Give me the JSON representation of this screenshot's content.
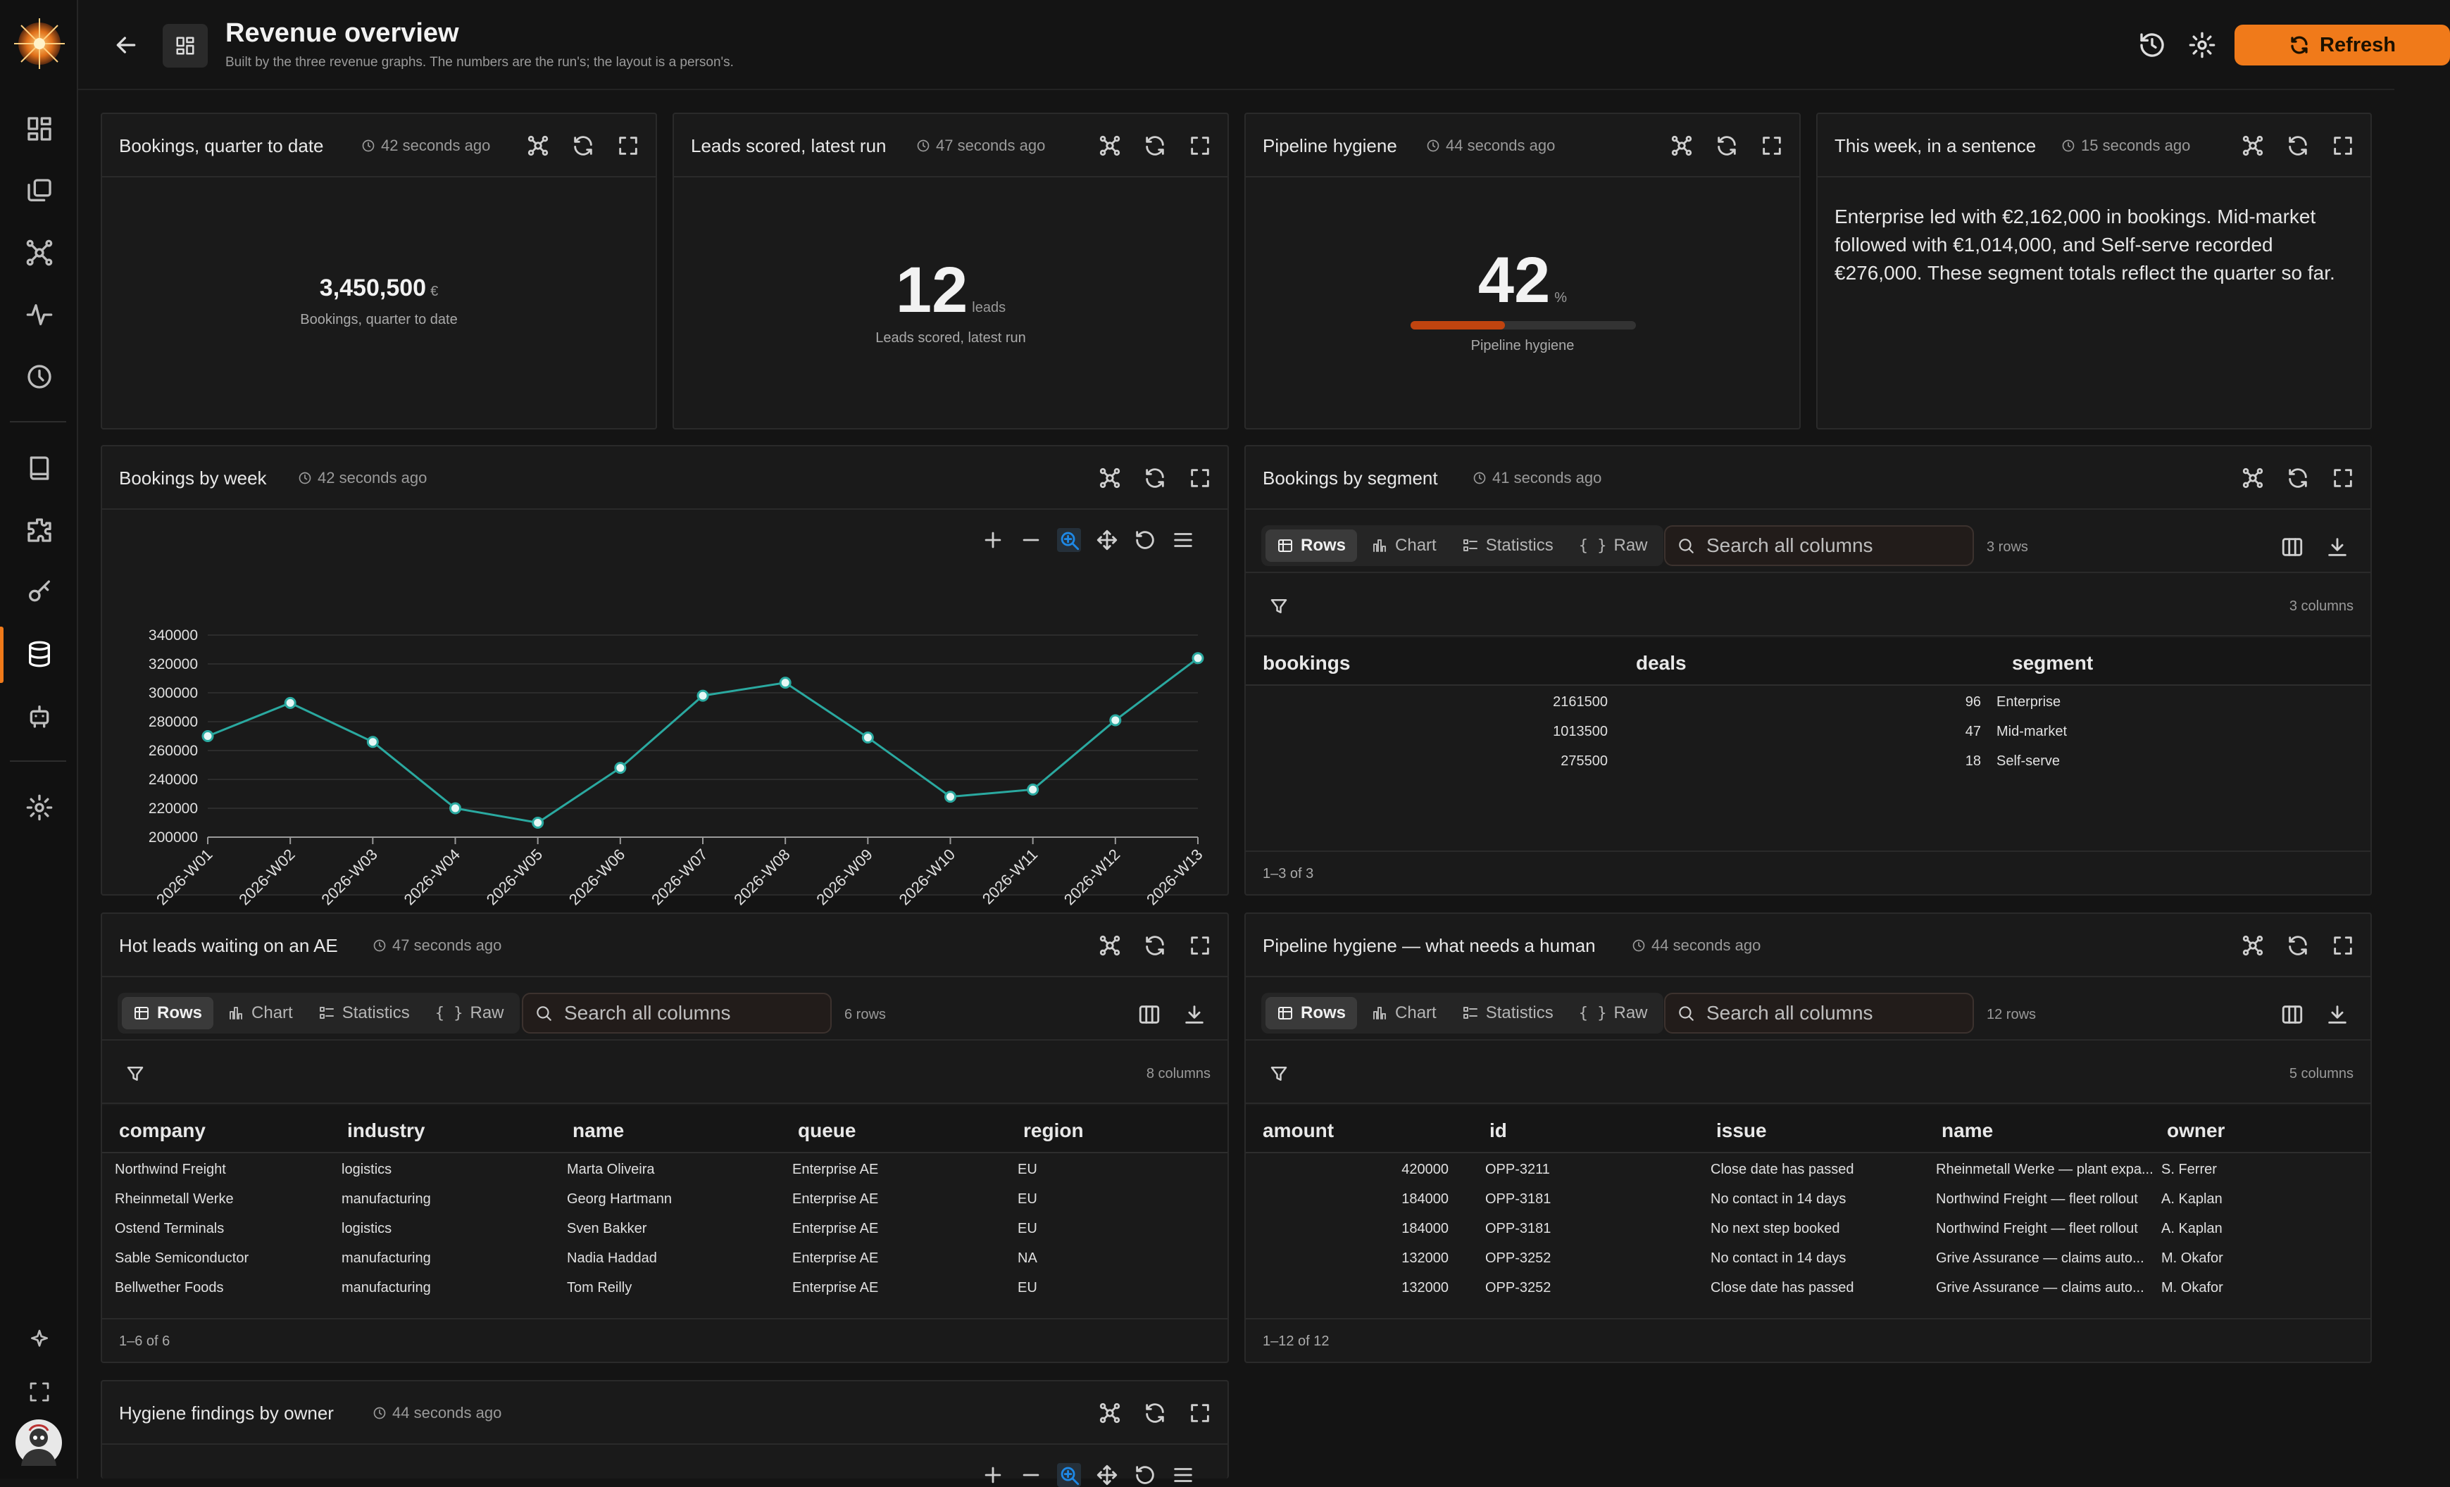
{
  "header": {
    "title": "Revenue overview",
    "subtitle": "Built by the three revenue graphs. The numbers are the run's; the layout is a person's.",
    "refresh_label": "Refresh",
    "accent": "#f07a1a"
  },
  "rail": {
    "items": [
      "dashboard-icon",
      "pages-icon",
      "graph-icon",
      "activity-icon",
      "history-icon",
      "book-icon",
      "puzzle-icon",
      "key-icon",
      "database-icon",
      "robot-icon",
      "settings-icon"
    ],
    "bottom": [
      "sparkle-icon",
      "expand-icon",
      "avatar"
    ]
  },
  "cards": {
    "bookings_qtd": {
      "title": "Bookings, quarter to date",
      "age": "42 seconds ago",
      "value": "3,450,500",
      "unit": "€",
      "label": "Bookings, quarter to date"
    },
    "leads_scored": {
      "title": "Leads scored, latest run",
      "age": "47 seconds ago",
      "value": "12",
      "unit": "leads",
      "label": "Leads scored, latest run"
    },
    "pipeline_hygiene": {
      "title": "Pipeline hygiene",
      "age": "44 seconds ago",
      "value": "42",
      "unit": "%",
      "label": "Pipeline hygiene",
      "progress": 0.42,
      "bar_color": "#c0440f"
    },
    "this_week": {
      "title": "This week, in a sentence",
      "age": "15 seconds ago",
      "text": "Enterprise led with €2,162,000 in bookings. Mid-market followed with €1,014,000, and Self-serve recorded €276,000. These segment totals reflect the quarter so far."
    },
    "bookings_by_week": {
      "title": "Bookings by week",
      "age": "42 seconds ago"
    },
    "bookings_by_segment": {
      "title": "Bookings by segment",
      "age": "41 seconds ago",
      "tabs": [
        "Rows",
        "Chart",
        "Statistics",
        "Raw"
      ],
      "search_placeholder": "Search all columns",
      "rows_label": "3 rows",
      "cols_label": "3 columns",
      "columns": [
        "bookings",
        "deals",
        "segment"
      ],
      "rows": [
        [
          "2161500",
          "96",
          "Enterprise"
        ],
        [
          "1013500",
          "47",
          "Mid-market"
        ],
        [
          "275500",
          "18",
          "Self-serve"
        ]
      ],
      "footer": "1–3 of 3"
    },
    "hot_leads": {
      "title": "Hot leads waiting on an AE",
      "age": "47 seconds ago",
      "tabs": [
        "Rows",
        "Chart",
        "Statistics",
        "Raw"
      ],
      "search_placeholder": "Search all columns",
      "rows_label": "6 rows",
      "cols_label": "8 columns",
      "columns": [
        "company",
        "industry",
        "name",
        "queue",
        "region"
      ],
      "rows": [
        [
          "Northwind Freight",
          "logistics",
          "Marta Oliveira",
          "Enterprise AE",
          "EU"
        ],
        [
          "Rheinmetall Werke",
          "manufacturing",
          "Georg Hartmann",
          "Enterprise AE",
          "EU"
        ],
        [
          "Ostend Terminals",
          "logistics",
          "Sven Bakker",
          "Enterprise AE",
          "EU"
        ],
        [
          "Sable Semiconductor",
          "manufacturing",
          "Nadia Haddad",
          "Enterprise AE",
          "NA"
        ],
        [
          "Bellwether Foods",
          "manufacturing",
          "Tom Reilly",
          "Enterprise AE",
          "EU"
        ]
      ],
      "footer": "1–6 of 6"
    },
    "pipeline_needs_human": {
      "title": "Pipeline hygiene — what needs a human",
      "age": "44 seconds ago",
      "tabs": [
        "Rows",
        "Chart",
        "Statistics",
        "Raw"
      ],
      "search_placeholder": "Search all columns",
      "rows_label": "12 rows",
      "cols_label": "5 columns",
      "columns": [
        "amount",
        "id",
        "issue",
        "name",
        "owner"
      ],
      "rows": [
        [
          "420000",
          "OPP-3211",
          "Close date has passed",
          "Rheinmetall Werke — plant expa...",
          "S. Ferrer"
        ],
        [
          "184000",
          "OPP-3181",
          "No contact in 14 days",
          "Northwind Freight — fleet rollout",
          "A. Kaplan"
        ],
        [
          "184000",
          "OPP-3181",
          "No next step booked",
          "Northwind Freight — fleet rollout",
          "A. Kaplan"
        ],
        [
          "132000",
          "OPP-3252",
          "No contact in 14 days",
          "Grive Assurance — claims auto...",
          "M. Okafor"
        ],
        [
          "132000",
          "OPP-3252",
          "Close date has passed",
          "Grive Assurance — claims auto...",
          "M. Okafor"
        ]
      ],
      "footer": "1–12 of 12"
    },
    "hygiene_by_owner": {
      "title": "Hygiene findings by owner",
      "age": "44 seconds ago"
    }
  },
  "chart_data": {
    "type": "line",
    "x": [
      "2026-W01",
      "2026-W02",
      "2026-W03",
      "2026-W04",
      "2026-W05",
      "2026-W06",
      "2026-W07",
      "2026-W08",
      "2026-W09",
      "2026-W10",
      "2026-W11",
      "2026-W12",
      "2026-W13"
    ],
    "y": [
      270000,
      293000,
      266000,
      220000,
      210000,
      248000,
      298000,
      307000,
      269000,
      228000,
      233000,
      281000,
      324000
    ],
    "ylim": [
      200000,
      340000
    ],
    "yticks": [
      200000,
      220000,
      240000,
      260000,
      280000,
      300000,
      320000,
      340000
    ],
    "grid": true,
    "line_color": "#2aa9a0"
  }
}
